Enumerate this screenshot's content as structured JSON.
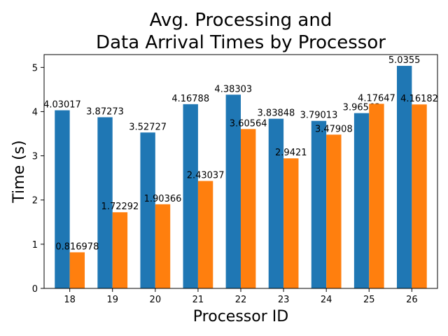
{
  "chart_data": {
    "type": "bar",
    "title_lines": [
      "Avg. Processing and",
      "Data Arrival Times by Processor"
    ],
    "xlabel": "Processor ID",
    "ylabel": "Time (s)",
    "categories": [
      "18",
      "19",
      "20",
      "21",
      "22",
      "23",
      "24",
      "25",
      "26"
    ],
    "series": [
      {
        "color": "#1f77b4",
        "values": [
          4.03017,
          3.87273,
          3.52727,
          4.16788,
          4.38303,
          3.83848,
          3.79013,
          3.96563,
          5.0355
        ],
        "labels": [
          "4.03017",
          "3.87273",
          "3.52727",
          "4.16788",
          "4.38303",
          "3.83848",
          "3.79013",
          "3.96563",
          "5.0355"
        ]
      },
      {
        "color": "#ff7f0e",
        "values": [
          0.816978,
          1.72292,
          1.90366,
          2.43037,
          3.60564,
          2.9421,
          3.47908,
          4.17647,
          4.16182
        ],
        "labels": [
          "0.816978",
          "1.72292",
          "1.90366",
          "2.43037",
          "3.60564",
          "2.9421",
          "3.47908",
          "4.17647",
          "4.16182"
        ]
      }
    ],
    "yticks": [
      0,
      1,
      2,
      3,
      4,
      5
    ],
    "ylim": [
      0,
      5.29
    ],
    "grid": false,
    "legend": false
  }
}
